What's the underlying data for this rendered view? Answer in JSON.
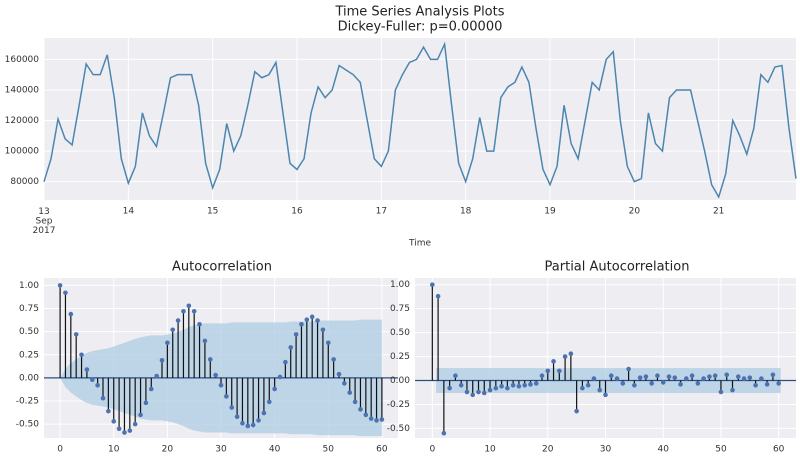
{
  "chart_data": [
    {
      "type": "line",
      "title": "Time Series Analysis Plots",
      "subtitle": "Dickey-Fuller: p=0.00000",
      "xlabel": "Time",
      "color": "#4c86b0",
      "grid": true,
      "x": [
        0,
        2,
        4,
        6,
        8,
        10,
        12,
        14,
        16,
        18,
        20,
        22,
        24,
        26,
        28,
        30,
        32,
        34,
        36,
        38,
        40,
        42,
        44,
        46,
        48,
        50,
        52,
        54,
        56,
        58,
        60,
        62,
        64,
        66,
        68,
        70,
        72,
        74,
        76,
        78,
        80,
        82,
        84,
        86,
        88,
        90,
        92,
        94,
        96,
        98,
        100,
        102,
        104,
        106,
        108,
        110,
        112,
        114,
        116,
        118,
        120,
        122,
        124,
        126,
        128,
        130,
        132,
        134,
        136,
        138,
        140,
        142,
        144,
        146,
        148,
        150,
        152,
        154,
        156,
        158,
        160,
        162,
        164,
        166,
        168,
        170,
        172,
        174,
        176,
        178,
        180,
        182,
        184,
        186,
        188,
        190,
        192,
        194,
        196,
        198,
        200,
        202,
        204,
        206,
        208,
        210,
        212,
        214
      ],
      "values": [
        80000,
        95000,
        121000,
        108000,
        104000,
        130000,
        157000,
        150000,
        150000,
        163000,
        135000,
        95000,
        79000,
        90000,
        125000,
        110000,
        103000,
        125000,
        148000,
        150000,
        150000,
        150000,
        130000,
        92000,
        76000,
        88000,
        118000,
        100000,
        110000,
        130000,
        152000,
        148000,
        150000,
        158000,
        125000,
        92000,
        88000,
        95000,
        125000,
        142000,
        135000,
        140000,
        156000,
        153000,
        150000,
        145000,
        120000,
        95000,
        90000,
        100000,
        140000,
        150000,
        158000,
        160000,
        168000,
        160000,
        160000,
        170000,
        130000,
        92000,
        80000,
        95000,
        122000,
        100000,
        100000,
        135000,
        142000,
        145000,
        155000,
        145000,
        115000,
        88000,
        78000,
        90000,
        130000,
        105000,
        95000,
        120000,
        145000,
        140000,
        160000,
        165000,
        120000,
        90000,
        80000,
        82000,
        125000,
        105000,
        100000,
        135000,
        140000,
        140000,
        140000,
        120000,
        100000,
        78000,
        70000,
        85000,
        120000,
        110000,
        98000,
        115000,
        150000,
        145000,
        155000,
        156000,
        115000,
        82000
      ],
      "xlim": [
        0,
        214
      ],
      "ylim": [
        68000,
        174000
      ],
      "yticks": [
        80000,
        100000,
        120000,
        140000,
        160000
      ],
      "xticks": [
        {
          "value": 0,
          "label": "13 Sep 2017"
        },
        {
          "value": 24,
          "label": "14"
        },
        {
          "value": 48,
          "label": "15"
        },
        {
          "value": 72,
          "label": "16"
        },
        {
          "value": 96,
          "label": "17"
        },
        {
          "value": 120,
          "label": "18"
        },
        {
          "value": 144,
          "label": "19"
        },
        {
          "value": 168,
          "label": "20"
        },
        {
          "value": 192,
          "label": "21"
        }
      ]
    },
    {
      "type": "stem",
      "title": "Autocorrelation",
      "color": "#4c72b0",
      "band_color": "#a9c9e2",
      "grid": true,
      "x": [
        0,
        1,
        2,
        3,
        4,
        5,
        6,
        7,
        8,
        9,
        10,
        11,
        12,
        13,
        14,
        15,
        16,
        17,
        18,
        19,
        20,
        21,
        22,
        23,
        24,
        25,
        26,
        27,
        28,
        29,
        30,
        31,
        32,
        33,
        34,
        35,
        36,
        37,
        38,
        39,
        40,
        41,
        42,
        43,
        44,
        45,
        46,
        47,
        48,
        49,
        50,
        51,
        52,
        53,
        54,
        55,
        56,
        57,
        58,
        59,
        60
      ],
      "values": [
        1.0,
        0.92,
        0.69,
        0.47,
        0.25,
        0.09,
        -0.02,
        -0.08,
        -0.22,
        -0.36,
        -0.47,
        -0.55,
        -0.59,
        -0.57,
        -0.5,
        -0.4,
        -0.27,
        -0.12,
        0.02,
        0.19,
        0.38,
        0.52,
        0.62,
        0.72,
        0.78,
        0.72,
        0.58,
        0.4,
        0.2,
        0.03,
        -0.08,
        -0.2,
        -0.32,
        -0.42,
        -0.49,
        -0.52,
        -0.51,
        -0.46,
        -0.38,
        -0.26,
        -0.12,
        0.01,
        0.17,
        0.33,
        0.47,
        0.58,
        0.63,
        0.66,
        0.62,
        0.52,
        0.38,
        0.2,
        0.04,
        -0.06,
        -0.16,
        -0.26,
        -0.34,
        -0.4,
        -0.44,
        -0.46,
        -0.45
      ],
      "confidence": [
        0,
        0.1,
        0.16,
        0.2,
        0.24,
        0.27,
        0.29,
        0.3,
        0.31,
        0.32,
        0.34,
        0.36,
        0.38,
        0.4,
        0.42,
        0.44,
        0.45,
        0.46,
        0.46,
        0.46,
        0.47,
        0.48,
        0.5,
        0.52,
        0.55,
        0.57,
        0.58,
        0.59,
        0.59,
        0.59,
        0.59,
        0.59,
        0.6,
        0.6,
        0.6,
        0.6,
        0.6,
        0.6,
        0.6,
        0.6,
        0.6,
        0.6,
        0.6,
        0.61,
        0.61,
        0.61,
        0.61,
        0.61,
        0.62,
        0.62,
        0.62,
        0.62,
        0.62,
        0.62,
        0.62,
        0.62,
        0.63,
        0.63,
        0.63,
        0.63,
        0.63
      ],
      "xlim": [
        -3,
        63
      ],
      "ylim": [
        -0.65,
        1.08
      ],
      "xticks": [
        0,
        10,
        20,
        30,
        40,
        50,
        60
      ],
      "yticks": [
        {
          "value": -0.5,
          "label": "-0.50"
        },
        {
          "value": -0.25,
          "label": "-0.25"
        },
        {
          "value": 0,
          "label": "0.00"
        },
        {
          "value": 0.25,
          "label": "0.25"
        },
        {
          "value": 0.5,
          "label": "0.50"
        },
        {
          "value": 0.75,
          "label": "0.75"
        },
        {
          "value": 1,
          "label": "1.00"
        }
      ]
    },
    {
      "type": "stem",
      "title": "Partial Autocorrelation",
      "color": "#4c72b0",
      "band_color": "#a9c9e2",
      "grid": true,
      "x": [
        0,
        1,
        2,
        3,
        4,
        5,
        6,
        7,
        8,
        9,
        10,
        11,
        12,
        13,
        14,
        15,
        16,
        17,
        18,
        19,
        20,
        21,
        22,
        23,
        24,
        25,
        26,
        27,
        28,
        29,
        30,
        31,
        32,
        33,
        34,
        35,
        36,
        37,
        38,
        39,
        40,
        41,
        42,
        43,
        44,
        45,
        46,
        47,
        48,
        49,
        50,
        51,
        52,
        53,
        54,
        55,
        56,
        57,
        58,
        59,
        60
      ],
      "values": [
        1.0,
        0.88,
        -0.55,
        -0.08,
        0.05,
        -0.05,
        -0.12,
        -0.15,
        -0.12,
        -0.13,
        -0.1,
        -0.08,
        -0.06,
        -0.08,
        -0.05,
        -0.06,
        -0.05,
        -0.04,
        -0.03,
        0.05,
        0.1,
        0.2,
        0.1,
        0.25,
        0.28,
        -0.32,
        -0.08,
        -0.05,
        0.02,
        -0.1,
        -0.15,
        0.05,
        0.02,
        -0.03,
        0.12,
        -0.05,
        0.03,
        0.04,
        -0.03,
        0.05,
        -0.02,
        0.04,
        0.03,
        -0.04,
        0.02,
        0.05,
        -0.03,
        0.02,
        0.04,
        0.05,
        -0.12,
        0.06,
        -0.1,
        0.04,
        0.02,
        0.03,
        -0.05,
        0.02,
        -0.04,
        0.06,
        -0.03
      ],
      "confidence": 0.13,
      "xlim": [
        -3,
        63
      ],
      "ylim": [
        -0.6,
        1.07
      ],
      "xticks": [
        0,
        10,
        20,
        30,
        40,
        50,
        60
      ],
      "yticks": [
        {
          "value": -0.5,
          "label": "-0.50"
        },
        {
          "value": -0.25,
          "label": "-0.25"
        },
        {
          "value": 0,
          "label": "0.00"
        },
        {
          "value": 0.25,
          "label": "0.25"
        },
        {
          "value": 0.5,
          "label": "0.50"
        },
        {
          "value": 0.75,
          "label": "0.75"
        },
        {
          "value": 1,
          "label": "1.00"
        }
      ]
    }
  ]
}
